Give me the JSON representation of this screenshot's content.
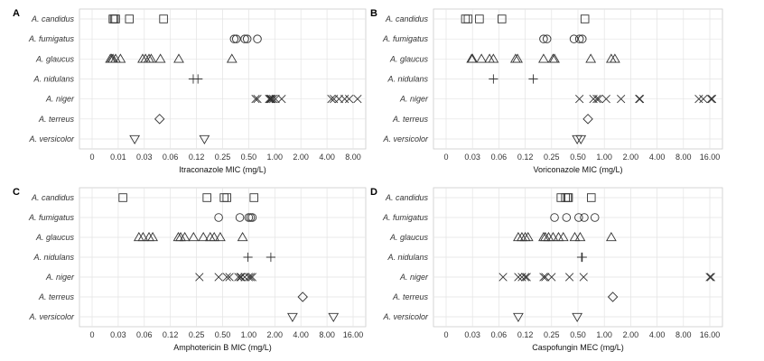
{
  "chart_data": [
    {
      "type": "scatter",
      "panel_label": "A",
      "xlabel": "Itraconazole MIC (mg/L)",
      "ylabel": "",
      "x_ticks": [
        "0",
        "0.01",
        "0.03",
        "0.06",
        "0.12",
        "0.25",
        "0.50",
        "1.00",
        "2.00",
        "4.00",
        "8.00"
      ],
      "categories": [
        "A. candidus",
        "A. fumigatus",
        "A. glaucus",
        "A. nidulans",
        "A. niger",
        "A. terreus",
        "A. versicolor"
      ],
      "grid": true,
      "series": [
        {
          "category": "A. candidus",
          "marker": "square",
          "x": [
            0.008,
            0.0085,
            0.009,
            0.016,
            0.05
          ]
        },
        {
          "category": "A. fumigatus",
          "marker": "circle",
          "x": [
            0.34,
            0.36,
            0.45,
            0.48,
            0.63
          ]
        },
        {
          "category": "A. glaucus",
          "marker": "triangle-up",
          "x": [
            0.007,
            0.0075,
            0.008,
            0.009,
            0.011,
            0.028,
            0.031,
            0.034,
            0.036,
            0.046,
            0.075,
            0.32
          ]
        },
        {
          "category": "A. nidulans",
          "marker": "plus",
          "x": [
            0.11,
            0.125
          ]
        },
        {
          "category": "A. niger",
          "marker": "cross",
          "x": [
            0.6,
            0.63,
            0.86,
            0.88,
            0.9,
            0.92,
            0.96,
            1.02,
            1.2,
            4.5,
            4.8,
            5.5,
            6.4,
            7.2,
            9.0
          ]
        },
        {
          "category": "A. terreus",
          "marker": "diamond",
          "x": [
            0.045
          ]
        },
        {
          "category": "A. versicolor",
          "marker": "triangle-down",
          "x": [
            0.02,
            0.15
          ]
        }
      ]
    },
    {
      "type": "scatter",
      "panel_label": "B",
      "xlabel": "Voriconazole MIC (mg/L)",
      "ylabel": "",
      "x_ticks": [
        "0",
        "0.03",
        "0.06",
        "0.12",
        "0.25",
        "0.50",
        "1.00",
        "2.00",
        "4.00",
        "8.00",
        "16.00"
      ],
      "categories": [
        "A. candidus",
        "A. fumigatus",
        "A. glaucus",
        "A. nidulans",
        "A. niger",
        "A. terreus",
        "A. versicolor"
      ],
      "grid": true,
      "series": [
        {
          "category": "A. candidus",
          "marker": "square",
          "x": [
            0.022,
            0.025,
            0.036,
            0.065,
            0.6
          ]
        },
        {
          "category": "A. fumigatus",
          "marker": "circle",
          "x": [
            0.2,
            0.22,
            0.45,
            0.52,
            0.56
          ]
        },
        {
          "category": "A. glaucus",
          "marker": "triangle-up",
          "x": [
            0.029,
            0.03,
            0.038,
            0.047,
            0.052,
            0.093,
            0.098,
            0.2,
            0.26,
            0.27,
            0.7,
            1.2,
            1.32
          ]
        },
        {
          "category": "A. nidulans",
          "marker": "plus",
          "x": [
            0.052,
            0.15
          ]
        },
        {
          "category": "A. niger",
          "marker": "cross",
          "x": [
            0.52,
            0.75,
            0.82,
            0.86,
            1.05,
            1.55,
            2.5,
            2.55,
            12.0,
            13.5,
            16.5,
            17.0
          ]
        },
        {
          "category": "A. terreus",
          "marker": "diamond",
          "x": [
            0.65
          ]
        },
        {
          "category": "A. versicolor",
          "marker": "triangle-down",
          "x": [
            0.49,
            0.54
          ]
        }
      ]
    },
    {
      "type": "scatter",
      "panel_label": "C",
      "xlabel": "Amphotericin B MIC (mg/L)",
      "ylabel": "",
      "x_ticks": [
        "0",
        "0.03",
        "0.06",
        "0.12",
        "0.25",
        "0.50",
        "1.00",
        "2.00",
        "4.00",
        "8.00",
        "16.00"
      ],
      "categories": [
        "A. candidus",
        "A. fumigatus",
        "A. glaucus",
        "A. nidulans",
        "A. niger",
        "A. terreus",
        "A. versicolor"
      ],
      "grid": true,
      "series": [
        {
          "category": "A. candidus",
          "marker": "square",
          "x": [
            0.034,
            0.33,
            0.52,
            0.56,
            1.15
          ]
        },
        {
          "category": "A. fumigatus",
          "marker": "circle",
          "x": [
            0.45,
            0.79,
            1.0,
            1.05,
            1.1
          ]
        },
        {
          "category": "A. glaucus",
          "marker": "triangle-up",
          "x": [
            0.052,
            0.058,
            0.068,
            0.075,
            0.15,
            0.16,
            0.18,
            0.23,
            0.3,
            0.36,
            0.4,
            0.47,
            0.85
          ]
        },
        {
          "category": "A. nidulans",
          "marker": "plus",
          "x": [
            0.98,
            1.8
          ]
        },
        {
          "category": "A. niger",
          "marker": "cross",
          "x": [
            0.27,
            0.45,
            0.56,
            0.6,
            0.76,
            0.8,
            0.82,
            0.9,
            1.0,
            1.05,
            1.1
          ]
        },
        {
          "category": "A. terreus",
          "marker": "diamond",
          "x": [
            4.2
          ]
        },
        {
          "category": "A. versicolor",
          "marker": "triangle-down",
          "x": [
            3.2,
            9.5
          ]
        }
      ]
    },
    {
      "type": "scatter",
      "panel_label": "D",
      "xlabel": "Caspofungin MEC (mg/L)",
      "ylabel": "",
      "x_ticks": [
        "0",
        "0.03",
        "0.06",
        "0.12",
        "0.25",
        "0.50",
        "1.00",
        "2.00",
        "4.00",
        "8.00",
        "16.00"
      ],
      "categories": [
        "A. candidus",
        "A. fumigatus",
        "A. glaucus",
        "A. nidulans",
        "A. niger",
        "A. terreus",
        "A. versicolor"
      ],
      "grid": true,
      "series": [
        {
          "category": "A. candidus",
          "marker": "square",
          "x": [
            0.32,
            0.36,
            0.38,
            0.39,
            0.71
          ]
        },
        {
          "category": "A. fumigatus",
          "marker": "circle",
          "x": [
            0.27,
            0.37,
            0.51,
            0.59,
            0.78
          ]
        },
        {
          "category": "A. glaucus",
          "marker": "triangle-up",
          "x": [
            0.1,
            0.11,
            0.12,
            0.13,
            0.2,
            0.21,
            0.23,
            0.26,
            0.3,
            0.34,
            0.46,
            0.53,
            1.2
          ]
        },
        {
          "category": "A. nidulans",
          "marker": "plus",
          "x": [
            0.55,
            0.56
          ]
        },
        {
          "category": "A. niger",
          "marker": "cross",
          "x": [
            0.067,
            0.1,
            0.11,
            0.12,
            0.125,
            0.2,
            0.21,
            0.25,
            0.4,
            0.58,
            16.0,
            16.5
          ]
        },
        {
          "category": "A. terreus",
          "marker": "diamond",
          "x": [
            1.25
          ]
        },
        {
          "category": "A. versicolor",
          "marker": "triangle-down",
          "x": [
            0.1,
            0.49
          ]
        }
      ]
    }
  ]
}
